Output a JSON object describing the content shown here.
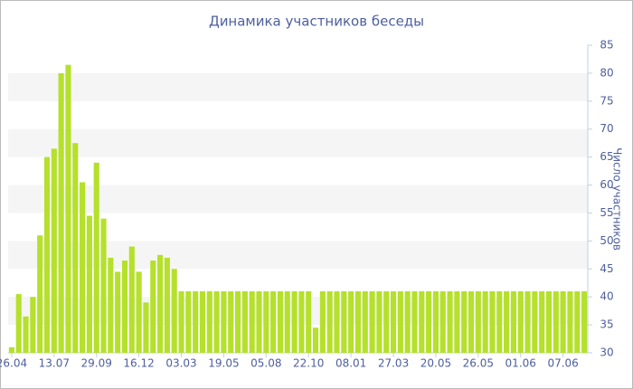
{
  "chart_data": {
    "type": "bar",
    "title": "Динамика участников беседы",
    "y_axis_label": "Число участников",
    "categories": [
      "26.04",
      null,
      null,
      null,
      null,
      null,
      "13.07",
      null,
      null,
      null,
      null,
      null,
      "29.09",
      null,
      null,
      null,
      null,
      null,
      "16.12",
      null,
      null,
      null,
      null,
      null,
      "03.03",
      null,
      null,
      null,
      null,
      null,
      "19.05",
      null,
      null,
      null,
      null,
      null,
      "05.08",
      null,
      null,
      null,
      null,
      null,
      "22.10",
      null,
      null,
      null,
      null,
      null,
      "08.01",
      null,
      null,
      null,
      null,
      null,
      "27.03",
      null,
      null,
      null,
      null,
      null,
      "20.05",
      null,
      null,
      null,
      null,
      null,
      "26.05",
      null,
      null,
      null,
      null,
      null,
      "01.06",
      null,
      null,
      null,
      null,
      null,
      "07.06",
      null,
      null,
      null
    ],
    "values": [
      31,
      40.5,
      36.5,
      40,
      51,
      65,
      66.5,
      80,
      81.5,
      67.5,
      60.5,
      54.5,
      64,
      54,
      47,
      44.5,
      46.5,
      49,
      44.5,
      39,
      46.5,
      47.5,
      47,
      45,
      41,
      41,
      41,
      41,
      41,
      41,
      41,
      41,
      41,
      41,
      41,
      41,
      41,
      41,
      41,
      41,
      41,
      41,
      41,
      34.5,
      41,
      41,
      41,
      41,
      41,
      41,
      41,
      41,
      41,
      41,
      41,
      41,
      41,
      41,
      41,
      41,
      41,
      41,
      41,
      41,
      41,
      41,
      41,
      41,
      41,
      41,
      41,
      41,
      41,
      41,
      41,
      41,
      41,
      41,
      41,
      41,
      41,
      41
    ],
    "color": "#b5e02b",
    "ylim": [
      30,
      85
    ],
    "yticks": [
      30,
      35,
      40,
      45,
      50,
      55,
      60,
      65,
      70,
      75,
      80,
      85
    ],
    "grid": "bands",
    "y_axis_side": "right"
  }
}
